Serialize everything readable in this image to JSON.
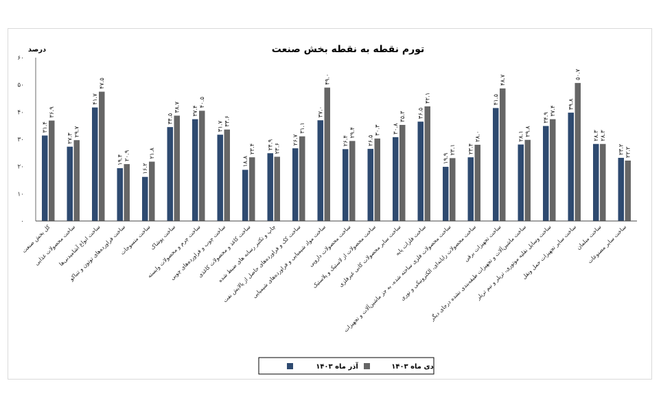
{
  "chart_data": {
    "type": "bar",
    "title": "تورم نقطه به نقطه بخش صنعت",
    "ylabel": "درصد",
    "ylim": [
      0,
      60
    ],
    "yticks": [
      "۰",
      "۱۰",
      "۲۰",
      "۳۰",
      "۴۰",
      "۵۰",
      "۶۰"
    ],
    "grid": false,
    "legend_position": "bottom",
    "categories": [
      "کل بخش صنعت",
      "ساخت محصولات غذایی",
      "ساخت انواع آشامیدنی‌ها",
      "ساخت فراورده‌های توتون و تنباکو",
      "ساخت منسوجات",
      "ساخت پوشاک",
      "ساخت چرم و محصولات وابسته",
      "ساخت چوب و فراورده‌های چوبی",
      "ساخت کاغذ و محصولات کاغذی",
      "چاپ و تکثیر رسانه های ضبط شده",
      "ساخت کک و فراورده‌های حاصل از پالایش نفت",
      "ساخت مواد شیمیایی و فراورده‌های شیمیایی",
      "ساخت محصولات دارویی",
      "ساخت محصولات از لاستیک و پلاستیک",
      "ساخت سایر محصولات کانی غیرفلزی",
      "ساخت فلزات پایه",
      "ساخت محصولات فلزی ساخته شده، به جز ماشین‌آلات و تجهیزات",
      "ساخت محصولات رایانه‌ای، الکترونیکی و نوری",
      "ساخت تجهیزات برقی",
      "ساخت ماشین‌آلات و تجهیزات طبقه‌بندی نشده درجای دیگر",
      "ساخت وسایل نقلیه موتوری، تریلر و نیم تریلر",
      "ساخت سایر تجهیزات حمل ونقل",
      "ساخت مبلمان",
      "ساخت سایر مصنوعات"
    ],
    "series": [
      {
        "name": "آذر ماه ۱۴۰۳",
        "color": "#2e4a70",
        "values": [
          31.4,
          27.3,
          41.7,
          19.4,
          16.2,
          34.5,
          37.4,
          31.7,
          18.8,
          24.9,
          26.7,
          37.0,
          26.4,
          26.5,
          30.8,
          36.5,
          19.9,
          23.4,
          41.5,
          28.1,
          34.9,
          39.8,
          28.3,
          23.2
        ],
        "labels": [
          "۳۱.۴",
          "۲۷.۳",
          "۴۱.۷",
          "۱۹.۴",
          "۱۶.۲",
          "۳۴.۵",
          "۳۷.۴",
          "۳۱.۷",
          "۱۸.۸",
          "۲۴.۹",
          "۲۶.۷",
          "۳۷.۰",
          "۲۶.۴",
          "۲۶.۵",
          "۳۰.۸",
          "۳۶.۵",
          "۱۹.۹",
          "۲۳.۴",
          "۴۱.۵",
          "۲۸.۱",
          "۳۴.۹",
          "۳۹.۸",
          "۲۸.۳",
          "۲۳.۲"
        ]
      },
      {
        "name": "دی ماه ۱۴۰۳",
        "color": "#666666",
        "values": [
          36.9,
          29.7,
          47.5,
          20.9,
          21.8,
          38.7,
          40.5,
          33.6,
          23.4,
          23.6,
          31.1,
          49.0,
          29.4,
          30.3,
          35.3,
          42.1,
          23.1,
          28.0,
          48.7,
          29.8,
          37.4,
          50.7,
          28.3,
          22.2
        ],
        "labels": [
          "۳۶.۹",
          "۲۹.۷",
          "۴۷.۵",
          "۲۰.۹",
          "۲۱.۸",
          "۳۸.۷",
          "۴۰.۵",
          "۳۳.۶",
          "۲۳.۴",
          "۲۳.۶",
          "۳۱.۱",
          "۴۹.۰",
          "۲۹.۴",
          "۳۰.۳",
          "۳۵.۳",
          "۴۲.۱",
          "۲۳.۱",
          "۲۸.۰",
          "۴۸.۷",
          "۲۹.۸",
          "۳۷.۴",
          "۵۰.۷",
          "۲۸.۳",
          "۲۲.۲"
        ]
      }
    ]
  }
}
